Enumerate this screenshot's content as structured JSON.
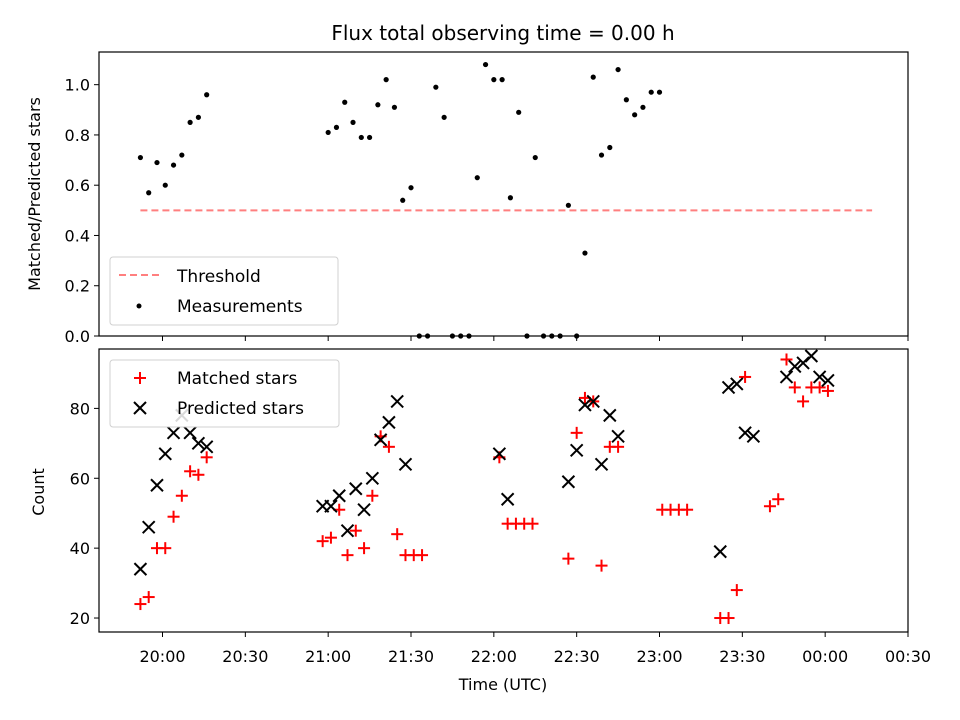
{
  "chart_data": [
    {
      "type": "scatter",
      "title": "Flux total observing time = 0.00 h",
      "xlabel": "",
      "ylabel": "Matched/Predicted stars",
      "xlim": [
        "19:37",
        "00:30"
      ],
      "ylim": [
        0,
        1.13
      ],
      "yticks": [
        "0.0",
        "0.2",
        "0.4",
        "0.6",
        "0.8",
        "1.0"
      ],
      "ytick_values": [
        0,
        0.2,
        0.4,
        0.6,
        0.8,
        1.0
      ],
      "grid": false,
      "legend_position": "lower-left",
      "series": [
        {
          "name": "Threshold",
          "style": "dashed-line",
          "color": "#ff7f7f",
          "points": [
            [
              "19:52",
              0.5
            ],
            [
              "00:17",
              0.5
            ]
          ]
        },
        {
          "name": "Measurements",
          "style": "dot",
          "color": "#000000",
          "points": [
            [
              "19:52",
              0.71
            ],
            [
              "19:55",
              0.57
            ],
            [
              "19:58",
              0.69
            ],
            [
              "20:01",
              0.6
            ],
            [
              "20:04",
              0.68
            ],
            [
              "20:07",
              0.72
            ],
            [
              "20:10",
              0.85
            ],
            [
              "20:13",
              0.87
            ],
            [
              "20:16",
              0.96
            ],
            [
              "21:00",
              0.81
            ],
            [
              "21:03",
              0.83
            ],
            [
              "21:06",
              0.93
            ],
            [
              "21:09",
              0.85
            ],
            [
              "21:12",
              0.79
            ],
            [
              "21:15",
              0.79
            ],
            [
              "21:18",
              0.92
            ],
            [
              "21:21",
              1.02
            ],
            [
              "21:24",
              0.91
            ],
            [
              "21:27",
              0.54
            ],
            [
              "21:30",
              0.59
            ],
            [
              "21:33",
              0.0
            ],
            [
              "21:36",
              0.0
            ],
            [
              "21:39",
              0.99
            ],
            [
              "21:42",
              0.87
            ],
            [
              "21:45",
              0.0
            ],
            [
              "21:48",
              0.0
            ],
            [
              "21:51",
              0.0
            ],
            [
              "21:54",
              0.63
            ],
            [
              "21:57",
              1.08
            ],
            [
              "22:00",
              1.02
            ],
            [
              "22:03",
              1.02
            ],
            [
              "22:06",
              0.55
            ],
            [
              "22:09",
              0.89
            ],
            [
              "22:12",
              0.0
            ],
            [
              "22:15",
              0.71
            ],
            [
              "22:18",
              0.0
            ],
            [
              "22:21",
              0.0
            ],
            [
              "22:24",
              0.0
            ],
            [
              "22:27",
              0.52
            ],
            [
              "22:30",
              0.0
            ],
            [
              "22:33",
              0.33
            ],
            [
              "22:36",
              1.03
            ],
            [
              "22:39",
              0.72
            ],
            [
              "22:42",
              0.75
            ],
            [
              "22:45",
              1.06
            ],
            [
              "22:48",
              0.94
            ],
            [
              "22:51",
              0.88
            ],
            [
              "22:54",
              0.91
            ],
            [
              "22:57",
              0.97
            ],
            [
              "23:00",
              0.97
            ]
          ]
        }
      ]
    },
    {
      "type": "scatter",
      "title": "",
      "xlabel": "Time (UTC)",
      "ylabel": "Count",
      "xlim": [
        "19:37",
        "00:30"
      ],
      "ylim": [
        16,
        97
      ],
      "xticks": [
        "20:00",
        "20:30",
        "21:00",
        "21:30",
        "22:00",
        "22:30",
        "23:00",
        "23:30",
        "00:00",
        "00:30"
      ],
      "yticks": [
        "20",
        "40",
        "60",
        "80"
      ],
      "ytick_values": [
        20,
        40,
        60,
        80
      ],
      "grid": false,
      "legend_position": "top-left",
      "series": [
        {
          "name": "Matched stars",
          "marker": "plus",
          "color": "#ff0000",
          "points": [
            [
              "19:52",
              24
            ],
            [
              "19:55",
              26
            ],
            [
              "19:58",
              40
            ],
            [
              "20:01",
              40
            ],
            [
              "20:04",
              49
            ],
            [
              "20:07",
              55
            ],
            [
              "20:10",
              62
            ],
            [
              "20:13",
              61
            ],
            [
              "20:16",
              66
            ],
            [
              "20:58",
              42
            ],
            [
              "21:01",
              43
            ],
            [
              "21:04",
              51
            ],
            [
              "21:07",
              38
            ],
            [
              "21:10",
              45
            ],
            [
              "21:13",
              40
            ],
            [
              "21:16",
              55
            ],
            [
              "21:19",
              72
            ],
            [
              "21:22",
              69
            ],
            [
              "21:25",
              44
            ],
            [
              "21:28",
              38
            ],
            [
              "21:31",
              38
            ],
            [
              "21:34",
              38
            ],
            [
              "22:02",
              66
            ],
            [
              "22:05",
              47
            ],
            [
              "22:08",
              47
            ],
            [
              "22:11",
              47
            ],
            [
              "22:14",
              47
            ],
            [
              "22:27",
              37
            ],
            [
              "22:30",
              73
            ],
            [
              "22:33",
              83
            ],
            [
              "22:36",
              82
            ],
            [
              "22:39",
              35
            ],
            [
              "22:42",
              69
            ],
            [
              "22:45",
              69
            ],
            [
              "23:01",
              51
            ],
            [
              "23:04",
              51
            ],
            [
              "23:07",
              51
            ],
            [
              "23:10",
              51
            ],
            [
              "23:22",
              20
            ],
            [
              "23:25",
              20
            ],
            [
              "23:28",
              28
            ],
            [
              "23:31",
              89
            ],
            [
              "23:40",
              52
            ],
            [
              "23:43",
              54
            ],
            [
              "23:46",
              94
            ],
            [
              "23:49",
              86
            ],
            [
              "23:52",
              82
            ],
            [
              "23:55",
              86
            ],
            [
              "23:58",
              86
            ],
            [
              "00:01",
              85
            ]
          ]
        },
        {
          "name": "Predicted stars",
          "marker": "x",
          "color": "#000000",
          "points": [
            [
              "19:52",
              34
            ],
            [
              "19:55",
              46
            ],
            [
              "19:58",
              58
            ],
            [
              "20:01",
              67
            ],
            [
              "20:04",
              73
            ],
            [
              "20:07",
              78
            ],
            [
              "20:10",
              73
            ],
            [
              "20:13",
              70
            ],
            [
              "20:16",
              69
            ],
            [
              "20:58",
              52
            ],
            [
              "21:01",
              52
            ],
            [
              "21:04",
              55
            ],
            [
              "21:07",
              45
            ],
            [
              "21:10",
              57
            ],
            [
              "21:13",
              51
            ],
            [
              "21:16",
              60
            ],
            [
              "21:19",
              71
            ],
            [
              "21:22",
              76
            ],
            [
              "21:25",
              82
            ],
            [
              "21:28",
              64
            ],
            [
              "22:02",
              67
            ],
            [
              "22:05",
              54
            ],
            [
              "22:27",
              59
            ],
            [
              "22:30",
              68
            ],
            [
              "22:33",
              81
            ],
            [
              "22:36",
              82
            ],
            [
              "22:39",
              64
            ],
            [
              "22:42",
              78
            ],
            [
              "22:45",
              72
            ],
            [
              "23:22",
              39
            ],
            [
              "23:25",
              86
            ],
            [
              "23:28",
              87
            ],
            [
              "23:31",
              73
            ],
            [
              "23:34",
              72
            ],
            [
              "23:46",
              89
            ],
            [
              "23:49",
              92
            ],
            [
              "23:52",
              93
            ],
            [
              "23:55",
              95
            ],
            [
              "23:58",
              89
            ],
            [
              "00:01",
              88
            ]
          ]
        }
      ]
    }
  ]
}
